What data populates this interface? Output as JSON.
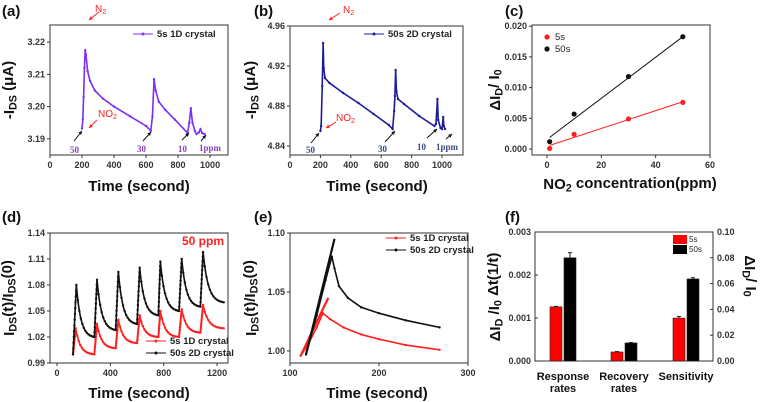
{
  "chart_data": [
    {
      "panel": "a",
      "letter": "(a)",
      "type": "line",
      "xlim": [
        0,
        1112
      ],
      "ylim": [
        3.185,
        3.2253
      ],
      "xticks": [
        "0",
        "200",
        "400",
        "600",
        "800",
        "1000"
      ],
      "yticks": [
        "3.19",
        "3.20",
        "3.21",
        "3.22"
      ],
      "xlabel": [
        [
          "Time (second)",
          ""
        ]
      ],
      "ylabel": [
        [
          "-I",
          ""
        ],
        [
          "DS",
          "sub"
        ],
        [
          " (μA)",
          ""
        ]
      ],
      "series": [
        {
          "name": "5s 1D crystal",
          "color": "#7b2ff7",
          "points": [
            [
              200,
              3.1932
            ],
            [
              205,
              3.196
            ],
            [
              210,
              3.203
            ],
            [
              215,
              3.212
            ],
            [
              220,
              3.2175
            ],
            [
              225,
              3.216
            ],
            [
              235,
              3.211
            ],
            [
              250,
              3.208
            ],
            [
              280,
              3.205
            ],
            [
              330,
              3.2025
            ],
            [
              400,
              3.2
            ],
            [
              500,
              3.197
            ],
            [
              600,
              3.194
            ],
            [
              630,
              3.1925
            ],
            [
              640,
              3.197
            ],
            [
              650,
              3.2085
            ],
            [
              660,
              3.205
            ],
            [
              680,
              3.2015
            ],
            [
              720,
              3.199
            ],
            [
              780,
              3.196
            ],
            [
              860,
              3.1918
            ],
            [
              870,
              3.195
            ],
            [
              880,
              3.1995
            ],
            [
              890,
              3.195
            ],
            [
              905,
              3.1925
            ],
            [
              915,
              3.1915
            ],
            [
              930,
              3.192
            ],
            [
              940,
              3.193
            ],
            [
              950,
              3.1918
            ],
            [
              965,
              3.1915
            ]
          ]
        }
      ],
      "annotations": [
        {
          "text": [
            [
              "N",
              ""
            ],
            [
              "2",
              "sub"
            ]
          ],
          "color": "#ff2020"
        },
        {
          "text": [
            [
              "NO",
              ""
            ],
            [
              "2",
              "sub"
            ]
          ],
          "color": "#ff2020"
        },
        {
          "text": [
            [
              "50",
              ""
            ]
          ],
          "color": "#8a3fc0"
        },
        {
          "text": [
            [
              "30",
              ""
            ]
          ],
          "color": "#8a3fc0"
        },
        {
          "text": [
            [
              "10",
              ""
            ]
          ],
          "color": "#8a3fc0"
        },
        {
          "text": [
            [
              "1ppm",
              ""
            ]
          ],
          "color": "#8a3fc0"
        }
      ]
    },
    {
      "panel": "b",
      "letter": "(b)",
      "type": "line",
      "xlim": [
        0,
        1138
      ],
      "ylim": [
        4.831,
        4.96
      ],
      "xticks": [
        "0",
        "200",
        "400",
        "600",
        "800",
        "1000"
      ],
      "yticks": [
        "4.84",
        "4.88",
        "4.92",
        "4.96"
      ],
      "xlabel": [
        [
          "Time (second)",
          ""
        ]
      ],
      "ylabel": [
        [
          "-I",
          ""
        ],
        [
          "DS",
          "sub"
        ],
        [
          " (μA)",
          ""
        ]
      ],
      "series": [
        {
          "name": "50s 2D crystal",
          "color": "#1c1c9a",
          "points": [
            [
              200,
              4.855
            ],
            [
              205,
              4.86
            ],
            [
              212,
              4.9
            ],
            [
              218,
              4.943
            ],
            [
              222,
              4.918
            ],
            [
              230,
              4.908
            ],
            [
              260,
              4.903
            ],
            [
              350,
              4.893
            ],
            [
              450,
              4.883
            ],
            [
              550,
              4.872
            ],
            [
              650,
              4.861
            ],
            [
              675,
              4.857
            ],
            [
              685,
              4.875
            ],
            [
              690,
              4.89
            ],
            [
              695,
              4.916
            ],
            [
              700,
              4.895
            ],
            [
              710,
              4.887
            ],
            [
              750,
              4.882
            ],
            [
              850,
              4.87
            ],
            [
              950,
              4.86
            ],
            [
              960,
              4.862
            ],
            [
              970,
              4.887
            ],
            [
              975,
              4.866
            ],
            [
              990,
              4.858
            ],
            [
              1000,
              4.857
            ],
            [
              1008,
              4.869
            ],
            [
              1012,
              4.86
            ],
            [
              1020,
              4.857
            ]
          ]
        }
      ],
      "annotations": [
        {
          "text": [
            [
              "N",
              ""
            ],
            [
              "2",
              "sub"
            ]
          ],
          "color": "#ff2020"
        },
        {
          "text": [
            [
              "NO",
              ""
            ],
            [
              "2",
              "sub"
            ]
          ],
          "color": "#ff2020"
        },
        {
          "text": [
            [
              "50",
              ""
            ]
          ],
          "color": "#3a4a7a"
        },
        {
          "text": [
            [
              "30",
              ""
            ]
          ],
          "color": "#3a4a7a"
        },
        {
          "text": [
            [
              "10",
              ""
            ]
          ],
          "color": "#3a4a7a"
        },
        {
          "text": [
            [
              "1ppm",
              ""
            ]
          ],
          "color": "#3a4a7a"
        }
      ]
    },
    {
      "panel": "c",
      "letter": "(c)",
      "type": "scatter",
      "xlim": [
        -5.5,
        60
      ],
      "ylim": [
        -0.00097,
        0.0202
      ],
      "xticks": [
        "0",
        "20",
        "40",
        "60"
      ],
      "yticks": [
        "0.000",
        "0.005",
        "0.010",
        "0.015",
        "0.020"
      ],
      "xlabel": [
        [
          "NO",
          ""
        ],
        [
          "2",
          "sub"
        ],
        [
          " concentration(ppm)",
          ""
        ]
      ],
      "ylabel": [
        [
          "ΔI",
          ""
        ],
        [
          "D",
          "sub"
        ],
        [
          "/ I",
          ""
        ],
        [
          "0",
          "sub"
        ]
      ],
      "series": [
        {
          "name": "5s",
          "color": "#ff2020",
          "points": [
            [
              1,
              0.0001
            ],
            [
              10,
              0.0024
            ],
            [
              30,
              0.0049
            ],
            [
              50,
              0.0076
            ]
          ],
          "fit": [
            [
              1,
              0.0006
            ],
            [
              50,
              0.0077
            ]
          ]
        },
        {
          "name": "50s",
          "color": "#111111",
          "points": [
            [
              1,
              0.0012
            ],
            [
              10,
              0.0057
            ],
            [
              30,
              0.0118
            ],
            [
              50,
              0.0183
            ]
          ],
          "fit": [
            [
              1,
              0.0019
            ],
            [
              50,
              0.0183
            ]
          ]
        }
      ]
    },
    {
      "panel": "d",
      "letter": "(d)",
      "type": "line",
      "xlim": [
        -52.5,
        1282
      ],
      "ylim": [
        0.99,
        1.14
      ],
      "xticks": [
        "0",
        "400",
        "800",
        "1200"
      ],
      "yticks": [
        "0.99",
        "1.02",
        "1.05",
        "1.08",
        "1.11",
        "1.14"
      ],
      "xlabel": [
        [
          "Time (second)",
          ""
        ]
      ],
      "ylabel": [
        [
          "I",
          ""
        ],
        [
          "DS",
          "sub"
        ],
        [
          "(t)/I",
          ""
        ],
        [
          "DS",
          "sub"
        ],
        [
          "(0)",
          ""
        ]
      ],
      "annotations": [
        {
          "text": [
            [
              "50 ppm",
              ""
            ]
          ],
          "color": "#ff2020"
        }
      ],
      "series": [
        {
          "name": "5s 1D crystal",
          "color": "#ff2020",
          "points": [
            [
              120,
              1.0
            ],
            [
              140,
              1.03
            ],
            [
              280,
              1.0
            ],
            [
              300,
              1.035
            ],
            [
              440,
              1.007
            ],
            [
              460,
              1.04
            ],
            [
              600,
              1.013
            ],
            [
              620,
              1.045
            ],
            [
              760,
              1.02
            ],
            [
              775,
              1.05
            ],
            [
              915,
              1.02
            ],
            [
              935,
              1.052
            ],
            [
              1075,
              1.025
            ],
            [
              1095,
              1.057
            ],
            [
              1250,
              1.03
            ]
          ]
        },
        {
          "name": "50s 2D crystal",
          "color": "#111111",
          "points": [
            [
              120,
              1.0
            ],
            [
              145,
              1.08
            ],
            [
              280,
              1.02
            ],
            [
              300,
              1.086
            ],
            [
              440,
              1.028
            ],
            [
              460,
              1.095
            ],
            [
              600,
              1.035
            ],
            [
              620,
              1.1
            ],
            [
              760,
              1.045
            ],
            [
              775,
              1.107
            ],
            [
              915,
              1.05
            ],
            [
              935,
              1.11
            ],
            [
              1075,
              1.055
            ],
            [
              1095,
              1.118
            ],
            [
              1250,
              1.06
            ]
          ]
        }
      ]
    },
    {
      "panel": "e",
      "letter": "(e)",
      "type": "line",
      "xlim": [
        100,
        300
      ],
      "ylim": [
        0.9898,
        1.1
      ],
      "xticks": [
        "100",
        "200",
        "300"
      ],
      "yticks": [
        "1.00",
        "1.05",
        "1.10"
      ],
      "xlabel": [
        [
          "Time (second)",
          ""
        ]
      ],
      "ylabel": [
        [
          "I",
          ""
        ],
        [
          "DS",
          "sub"
        ],
        [
          "(t)/I",
          ""
        ],
        [
          "DS",
          "sub"
        ],
        [
          "(0)",
          ""
        ]
      ],
      "series": [
        {
          "name": "5s 1D crystal",
          "color": "#ff2020",
          "points": [
            [
              112,
              0.996
            ],
            [
              120,
              1.005
            ],
            [
              130,
              1.02
            ],
            [
              137,
              1.032
            ],
            [
              145,
              1.027
            ],
            [
              160,
              1.02
            ],
            [
              180,
              1.014
            ],
            [
              200,
              1.01
            ],
            [
              230,
              1.005
            ],
            [
              268,
              1.001
            ]
          ],
          "fit": [
            [
              112,
              0.996
            ],
            [
              143,
              1.045
            ]
          ]
        },
        {
          "name": "50s 2D crystal",
          "color": "#111111",
          "points": [
            [
              118,
              0.997
            ],
            [
              130,
              1.03
            ],
            [
              140,
              1.06
            ],
            [
              147,
              1.08
            ],
            [
              150,
              1.07
            ],
            [
              155,
              1.055
            ],
            [
              165,
              1.045
            ],
            [
              180,
              1.037
            ],
            [
              200,
              1.032
            ],
            [
              230,
              1.026
            ],
            [
              268,
              1.02
            ]
          ],
          "fit": [
            [
              118,
              0.997
            ],
            [
              150,
              1.095
            ]
          ]
        }
      ]
    },
    {
      "panel": "f",
      "letter": "(f)",
      "type": "bar",
      "categories": [
        [
          "Response",
          "rates"
        ],
        [
          "Recovery",
          "rates"
        ],
        [
          "Sensitivity"
        ]
      ],
      "ylim_left": [
        0,
        0.003
      ],
      "ylim_right": [
        0,
        0.1
      ],
      "yticks_left": [
        "0.000",
        "0.001",
        "0.002",
        "0.003"
      ],
      "yticks_right": [
        "0.00",
        "0.02",
        "0.04",
        "0.06",
        "0.08",
        "0.10"
      ],
      "ylabel_left": [
        [
          "ΔI",
          ""
        ],
        [
          "D",
          "sub"
        ],
        [
          " /I",
          ""
        ],
        [
          "0",
          "sub"
        ],
        [
          " Δt(1/t)",
          ""
        ]
      ],
      "ylabel_right": [
        [
          "ΔI",
          ""
        ],
        [
          "D",
          "sub"
        ],
        [
          "/ I",
          ""
        ],
        [
          "0",
          "sub"
        ]
      ],
      "axis_per_category": [
        "left",
        "left",
        "right"
      ],
      "series": [
        {
          "name": "5s",
          "color": "#ff0000",
          "values": [
            0.00126,
            0.00021,
            0.0333
          ],
          "errors": [
            1e-05,
            1e-05,
            0.0012
          ]
        },
        {
          "name": "50s",
          "color": "#000000",
          "values": [
            0.0024,
            0.00042,
            0.0636
          ],
          "errors": [
            0.00012,
            1e-05,
            0.001
          ]
        }
      ]
    }
  ]
}
